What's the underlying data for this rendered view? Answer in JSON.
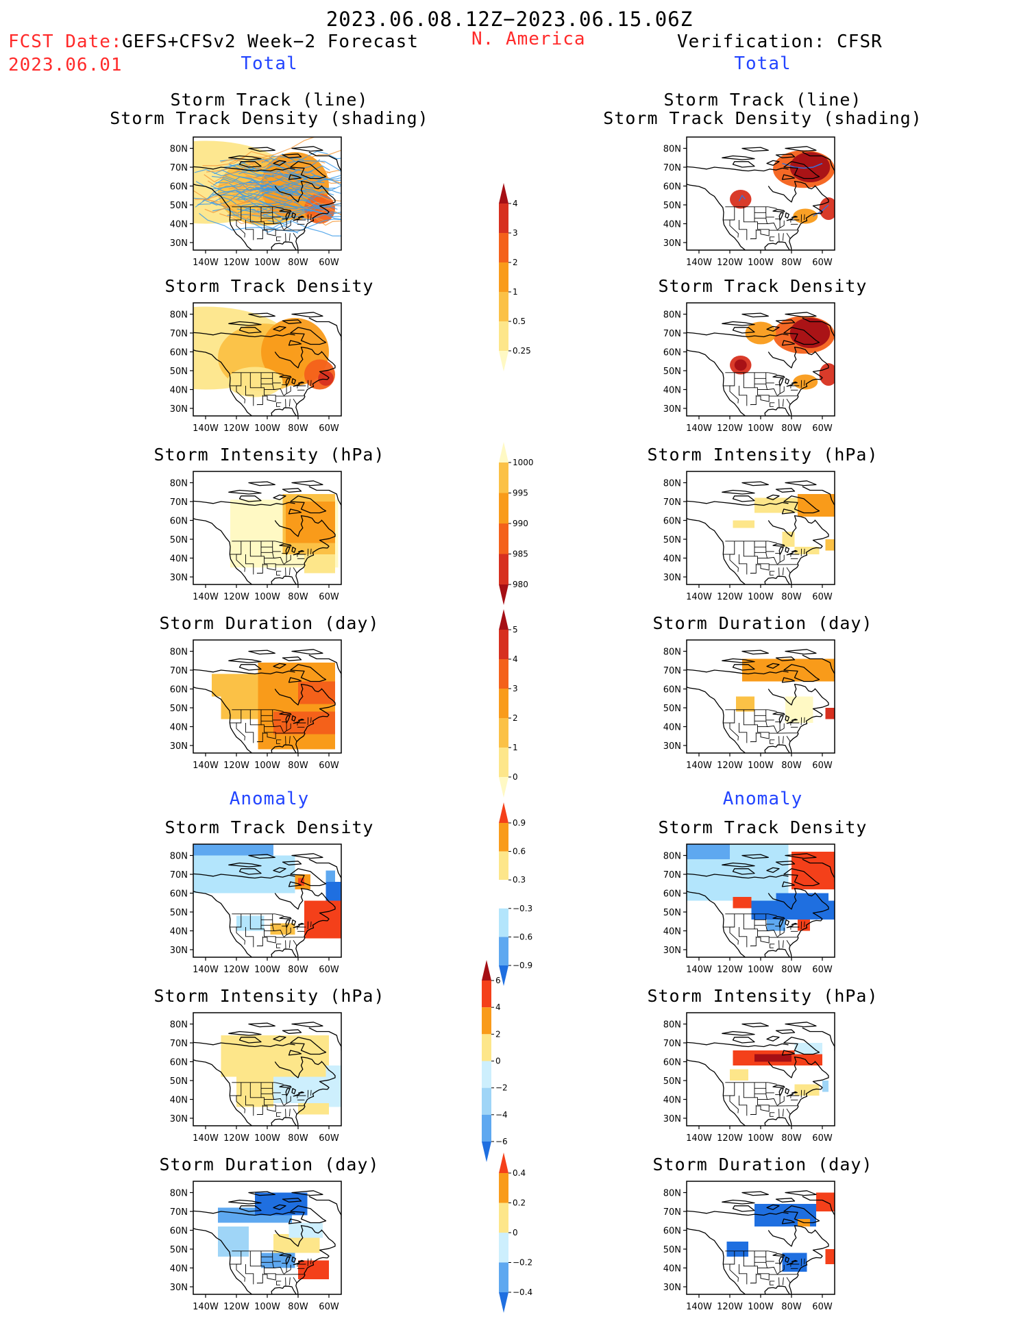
{
  "header": {
    "period": "2023.06.08.12Z−2023.06.15.06Z",
    "region": "N. America",
    "fcst_label": "FCST Date: ",
    "fcst_model": "GEFS+CFSv2 Week−2 Forecast",
    "fcst_date": "2023.06.01",
    "verification": "Verification: CFSR"
  },
  "sections": {
    "total": "Total",
    "anomaly": "Anomaly"
  },
  "panel_titles": {
    "track_line": "Storm Track (line)",
    "track_shading": "Storm Track Density (shading)",
    "density": "Storm Track Density",
    "intensity": "Storm Intensity (hPa)",
    "duration": "Storm Duration (day)"
  },
  "axes": {
    "lat_ticks": [
      "80N",
      "70N",
      "60N",
      "50N",
      "40N",
      "30N"
    ],
    "lon_ticks": [
      "140W",
      "120W",
      "100W",
      "80W",
      "60W"
    ]
  },
  "colorbars": {
    "density_total": {
      "labels": [
        "4",
        "3",
        "2",
        "1",
        "0.5",
        "0.25"
      ],
      "colors": [
        "#a50f15",
        "#d7301f",
        "#f4611a",
        "#f99b1a",
        "#fbc146",
        "#fde68a",
        "#fff9c4"
      ]
    },
    "intensity_total": {
      "labels": [
        "1000",
        "995",
        "990",
        "985",
        "980"
      ],
      "colors": [
        "#fff9c4",
        "#fbc146",
        "#f99b1a",
        "#f4611a",
        "#d7301f",
        "#a50f15"
      ]
    },
    "duration_total": {
      "labels": [
        "5",
        "4",
        "3",
        "2",
        "1",
        "0"
      ],
      "colors": [
        "#a50f15",
        "#d7301f",
        "#f4611a",
        "#f99b1a",
        "#fbc146",
        "#fde68a",
        "#fff9c4"
      ]
    },
    "density_anom": {
      "labels": [
        "0.9",
        "0.6",
        "0.3",
        "−0.3",
        "−0.6",
        "−0.9"
      ],
      "colors": [
        "#f4401a",
        "#f99b1a",
        "#fde68a",
        "#ffffff",
        "#b3e5fc",
        "#5ea8f0",
        "#1f6fe0"
      ]
    },
    "intensity_anom": {
      "labels": [
        "6",
        "4",
        "2",
        "0",
        "−2",
        "−4",
        "−6"
      ],
      "colors": [
        "#a50f15",
        "#f4401a",
        "#f99b1a",
        "#fde68a",
        "#cdeffd",
        "#9fd5f7",
        "#5ea8f0",
        "#1f6fe0"
      ]
    },
    "duration_anom": {
      "labels": [
        "0.4",
        "0.2",
        "0",
        "−0.2",
        "−0.4"
      ],
      "colors": [
        "#f4401a",
        "#f99b1a",
        "#fde68a",
        "#cdeffd",
        "#5ea8f0",
        "#1f6fe0"
      ]
    }
  }
}
